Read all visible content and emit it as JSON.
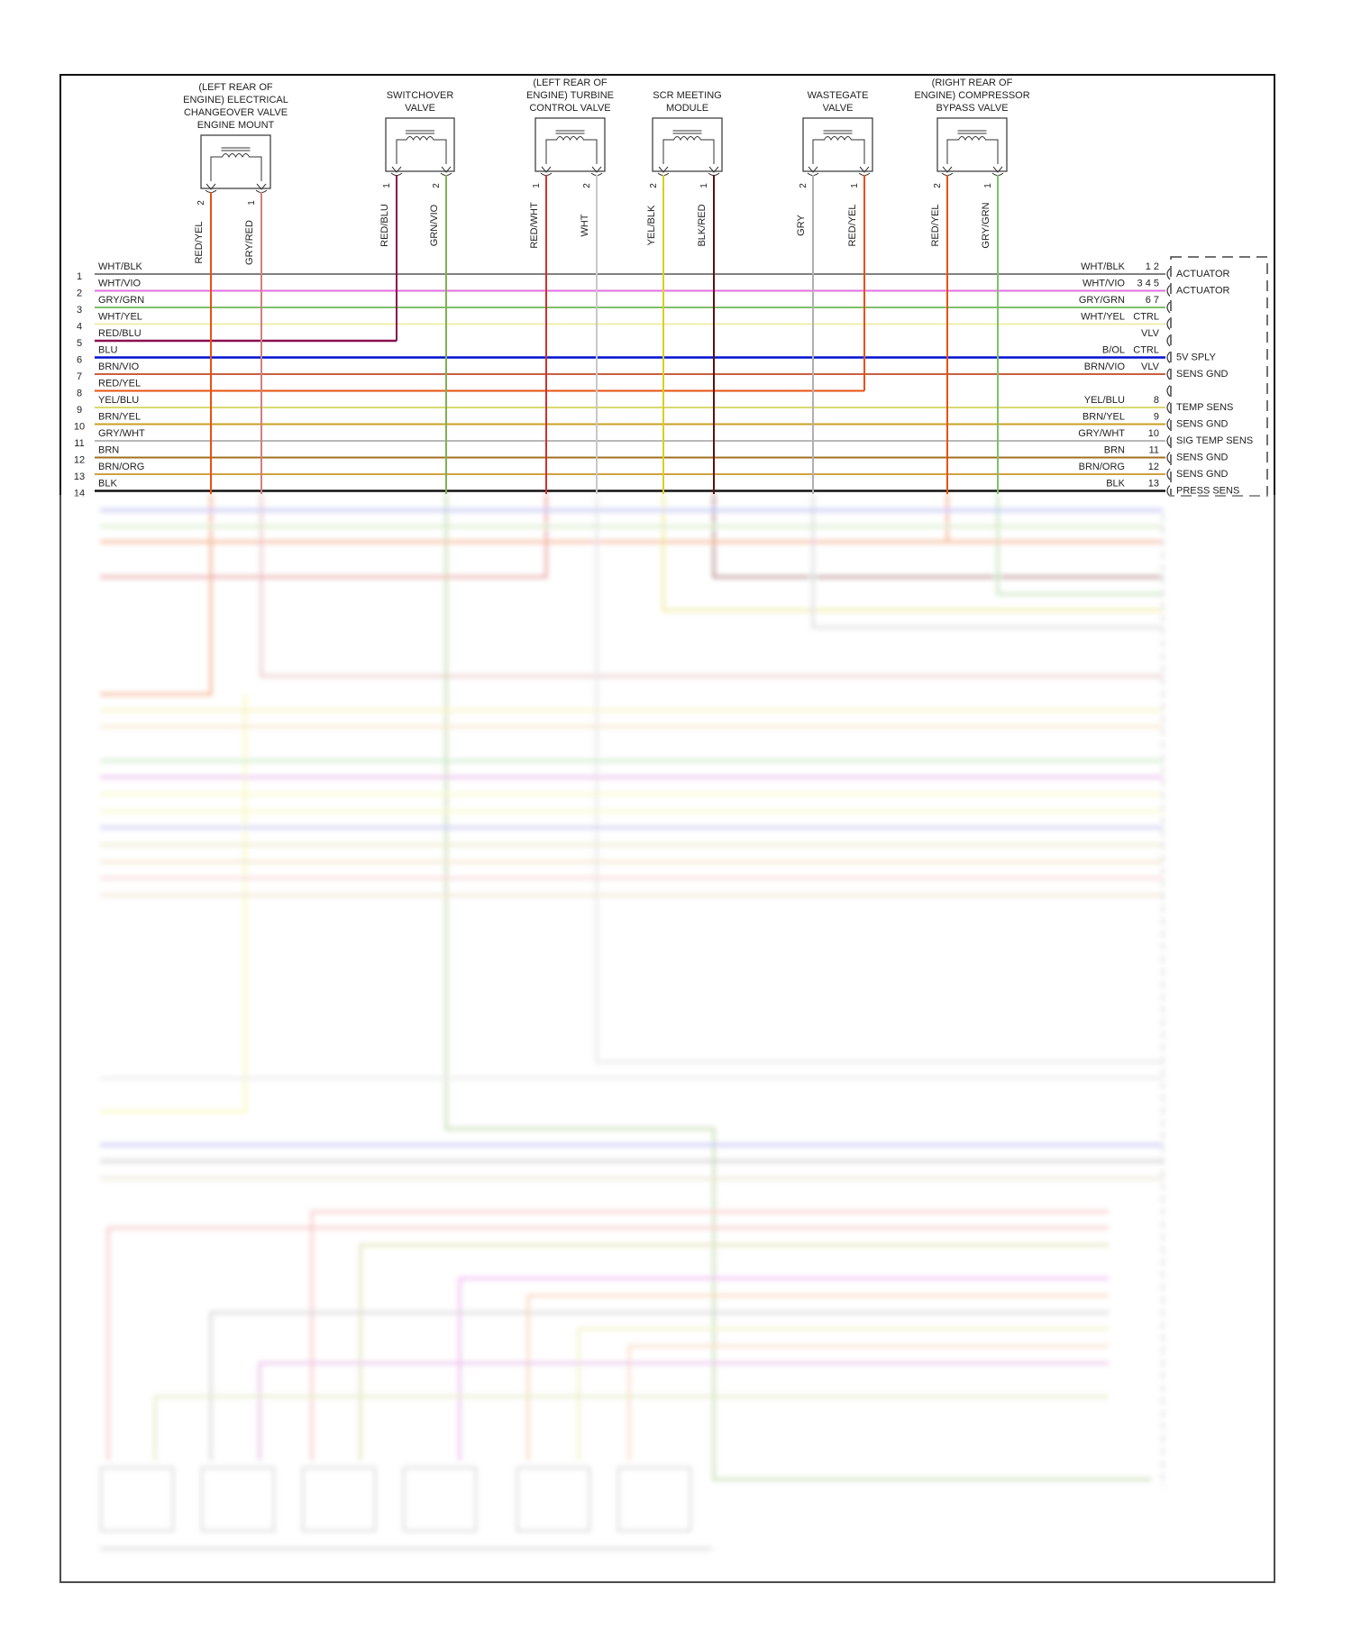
{
  "wire_colors": {
    "WHT/BLK": "#808080",
    "WHT/VIO": "#e070e0",
    "GRY/GRN": "#7fbf6a",
    "WHT/YEL": "#eeeeaa",
    "RED/BLU": "#8a1050",
    "BLU": "#0010d0",
    "BRN/VIO": "#c86040",
    "RED/YEL": "#e85010",
    "YEL/BLU": "#d8d870",
    "BRN/YEL": "#c8a020",
    "GRY/WHT": "#b8b8b8",
    "BRN": "#a07020",
    "BRN/ORG": "#d0a040",
    "BLK": "#111111",
    "GRY/RED": "#d08080",
    "GRN/VIO": "#80b050",
    "RED/WHT": "#d03030",
    "WHT": "#c8c8c8",
    "YEL/BLK": "#d8d020",
    "BLK/RED": "#601010",
    "GRY": "#b0b0b0"
  },
  "components": [
    {
      "name": [
        "(LEFT REAR OF",
        "ENGINE) ELECTRICAL",
        "CHANGEOVER VALVE",
        "ENGINE MOUNT"
      ],
      "pins": [
        {
          "pin": "2",
          "wire": "RED/YEL"
        },
        {
          "pin": "1",
          "wire": "GRY/RED"
        }
      ]
    },
    {
      "name": [
        "SWITCHOVER",
        "VALVE"
      ],
      "pins": [
        {
          "pin": "1",
          "wire": "RED/BLU"
        },
        {
          "pin": "2",
          "wire": "GRN/VIO"
        }
      ]
    },
    {
      "name": [
        "(LEFT REAR OF",
        "ENGINE) TURBINE",
        "CONTROL VALVE"
      ],
      "pins": [
        {
          "pin": "1",
          "wire": "RED/WHT"
        },
        {
          "pin": "2",
          "wire": "WHT"
        }
      ]
    },
    {
      "name": [
        "SCR MEETING",
        "MODULE"
      ],
      "pins": [
        {
          "pin": "2",
          "wire": "YEL/BLK"
        },
        {
          "pin": "1",
          "wire": "BLK/RED"
        }
      ]
    },
    {
      "name": [
        "WASTEGATE",
        "VALVE"
      ],
      "pins": [
        {
          "pin": "2",
          "wire": "GRY"
        },
        {
          "pin": "1",
          "wire": "RED/YEL"
        }
      ]
    },
    {
      "name": [
        "(RIGHT REAR OF",
        "ENGINE) COMPRESSOR",
        "BYPASS VALVE"
      ],
      "pins": [
        {
          "pin": "2",
          "wire": "RED/YEL"
        },
        {
          "pin": "1",
          "wire": "GRY/GRN"
        }
      ]
    }
  ],
  "rows": [
    {
      "num": "1",
      "wire": "WHT/BLK",
      "right_wire": "WHT/BLK",
      "right_pin": "1 2",
      "function": "ACTUATOR"
    },
    {
      "num": "2",
      "wire": "WHT/VIO",
      "right_wire": "WHT/VIO",
      "right_pin": "3 4 5",
      "function": "ACTUATOR"
    },
    {
      "num": "3",
      "wire": "GRY/GRN",
      "right_wire": "GRY/GRN",
      "right_pin": "6 7",
      "function": ""
    },
    {
      "num": "4",
      "wire": "WHT/YEL",
      "right_wire": "WHT/YEL",
      "right_pin": "CTRL",
      "function": ""
    },
    {
      "num": "5",
      "wire": "RED/BLU",
      "right_wire": "",
      "right_pin": "VLV",
      "function": ""
    },
    {
      "num": "6",
      "wire": "BLU",
      "right_wire": "B/OL",
      "right_pin": "CTRL",
      "function": "5V SPLY"
    },
    {
      "num": "7",
      "wire": "BRN/VIO",
      "right_wire": "BRN/VIO",
      "right_pin": "VLV",
      "function": "SENS GND"
    },
    {
      "num": "8",
      "wire": "RED/YEL",
      "right_wire": "",
      "right_pin": "",
      "function": ""
    },
    {
      "num": "9",
      "wire": "YEL/BLU",
      "right_wire": "YEL/BLU",
      "right_pin": "8",
      "function": "TEMP SENS"
    },
    {
      "num": "10",
      "wire": "BRN/YEL",
      "right_wire": "BRN/YEL",
      "right_pin": "9",
      "function": "SENS GND"
    },
    {
      "num": "11",
      "wire": "GRY/WHT",
      "right_wire": "GRY/WHT",
      "right_pin": "10",
      "function": "SIG TEMP SENS"
    },
    {
      "num": "12",
      "wire": "BRN",
      "right_wire": "BRN",
      "right_pin": "11",
      "function": "SENS GND"
    },
    {
      "num": "13",
      "wire": "BRN/ORG",
      "right_wire": "BRN/ORG",
      "right_pin": "12",
      "function": "SENS GND"
    },
    {
      "num": "14",
      "wire": "BLK",
      "right_wire": "BLK",
      "right_pin": "13",
      "function": "PRESS SENS"
    }
  ]
}
